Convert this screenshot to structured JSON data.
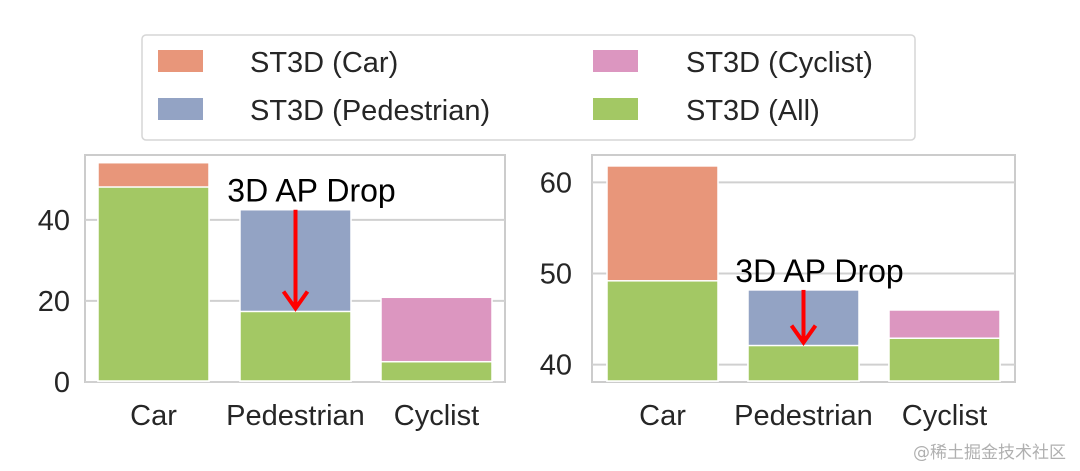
{
  "legend": {
    "items": [
      {
        "label": "ST3D (Car)",
        "color": "#e8967a"
      },
      {
        "label": "ST3D (Cyclist)",
        "color": "#dc96c0"
      },
      {
        "label": "ST3D (Pedestrian)",
        "color": "#93a3c4"
      },
      {
        "label": "ST3D (All)",
        "color": "#a3c864"
      }
    ]
  },
  "watermark": "@稀土掘金技术社区",
  "chart_data": [
    {
      "type": "bar",
      "stacked": "overlay",
      "categories": [
        "Car",
        "Pedestrian",
        "Cyclist"
      ],
      "series": [
        {
          "name": "ST3D (Car)",
          "color": "#e8967a",
          "values": [
            54.1,
            null,
            null
          ]
        },
        {
          "name": "ST3D (Pedestrian)",
          "color": "#93a3c4",
          "values": [
            null,
            42.5,
            null
          ]
        },
        {
          "name": "ST3D (Cyclist)",
          "color": "#dc96c0",
          "values": [
            null,
            null,
            20.9
          ]
        },
        {
          "name": "ST3D (All)",
          "color": "#a3c864",
          "values": [
            48.1,
            17.4,
            5.0
          ]
        }
      ],
      "ylim": [
        0,
        56
      ],
      "yticks": [
        0,
        20,
        40
      ],
      "grid": true,
      "annotation": {
        "text": "3D AP Drop",
        "category": "Pedestrian",
        "arrow_from": 42.5,
        "arrow_to": 17.4,
        "color": "#ff0000"
      },
      "xlabel": "",
      "ylabel": "",
      "title": ""
    },
    {
      "type": "bar",
      "stacked": "overlay",
      "categories": [
        "Car",
        "Pedestrian",
        "Cyclist"
      ],
      "series": [
        {
          "name": "ST3D (Car)",
          "color": "#e8967a",
          "values": [
            61.8,
            null,
            null
          ]
        },
        {
          "name": "ST3D (Pedestrian)",
          "color": "#93a3c4",
          "values": [
            null,
            48.2,
            null
          ]
        },
        {
          "name": "ST3D (Cyclist)",
          "color": "#dc96c0",
          "values": [
            null,
            null,
            46.0
          ]
        },
        {
          "name": "ST3D (All)",
          "color": "#a3c864",
          "values": [
            49.2,
            42.1,
            42.9
          ]
        }
      ],
      "ylim": [
        38.1,
        63
      ],
      "yticks": [
        40,
        50,
        60
      ],
      "grid": true,
      "annotation": {
        "text": "3D AP Drop",
        "category": "Pedestrian",
        "arrow_from": 48.2,
        "arrow_to": 42.1,
        "color": "#ff0000"
      },
      "xlabel": "",
      "ylabel": "",
      "title": ""
    }
  ]
}
